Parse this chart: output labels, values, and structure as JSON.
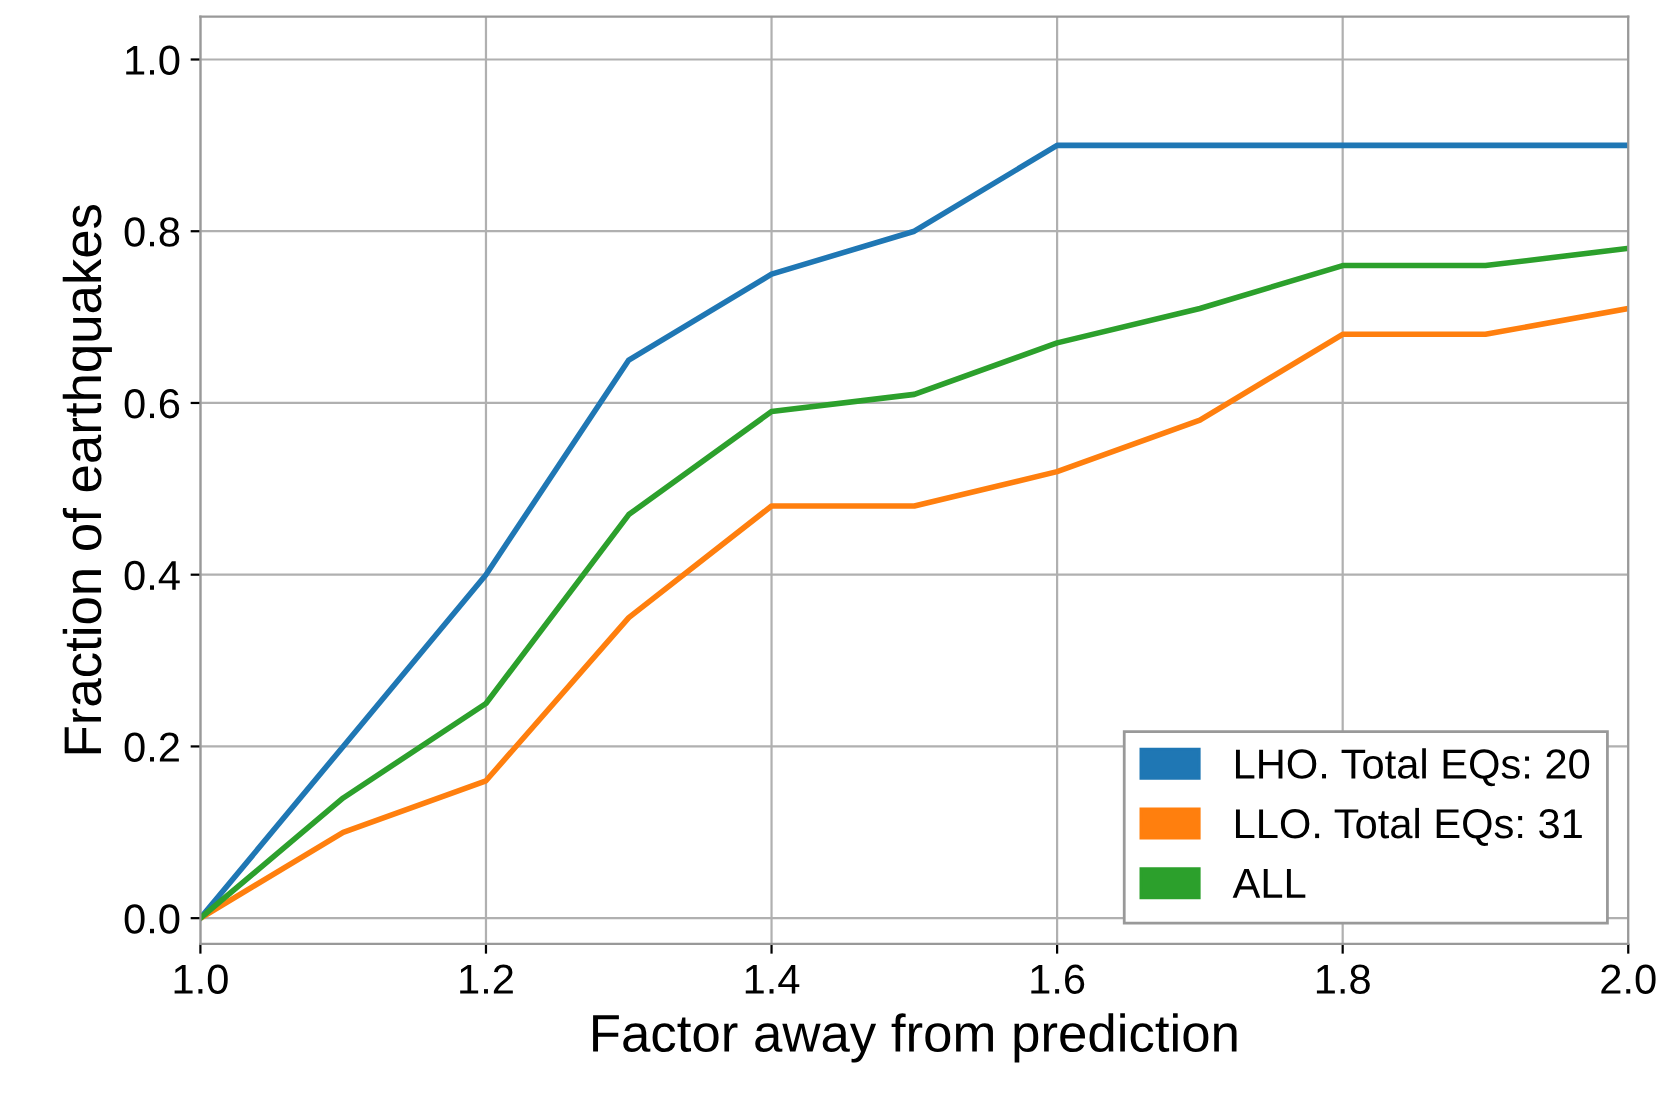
{
  "chart_data": {
    "type": "line",
    "xlabel": "Factor away from prediction",
    "ylabel": "Fraction of earthquakes",
    "x": [
      1.0,
      1.1,
      1.2,
      1.3,
      1.4,
      1.5,
      1.6,
      1.7,
      1.8,
      1.9,
      2.0
    ],
    "series": [
      {
        "name": "LHO. Total EQs: 20",
        "color": "#1f77b4",
        "values": [
          0,
          0.2,
          0.4,
          0.65,
          0.75,
          0.8,
          0.9,
          0.9,
          0.9,
          0.9,
          0.9
        ]
      },
      {
        "name": "LLO. Total EQs: 31",
        "color": "#ff7f0e",
        "values": [
          0,
          0.1,
          0.16,
          0.35,
          0.48,
          0.48,
          0.52,
          0.58,
          0.68,
          0.68,
          0.71
        ]
      },
      {
        "name": "ALL",
        "color": "#2ca02c",
        "values": [
          0,
          0.14,
          0.25,
          0.47,
          0.59,
          0.61,
          0.67,
          0.71,
          0.76,
          0.76,
          0.78
        ]
      }
    ],
    "xlim": [
      1.0,
      2.0
    ],
    "xticks": [
      {
        "value": 1.0,
        "label": "1.0"
      },
      1.2,
      1.4,
      1.6,
      1.8,
      {
        "value": 2.0,
        "label": "2.0"
      }
    ],
    "ylim": [
      -0.03,
      1.05
    ],
    "yticks": [
      {
        "value": 0.0,
        "label": "0.0"
      },
      0.2,
      0.4,
      0.6,
      0.8,
      {
        "value": 1.0,
        "label": "1.0"
      }
    ],
    "grid": true,
    "legend": "bottom right",
    "marker": "none",
    "line_style": "solid"
  }
}
